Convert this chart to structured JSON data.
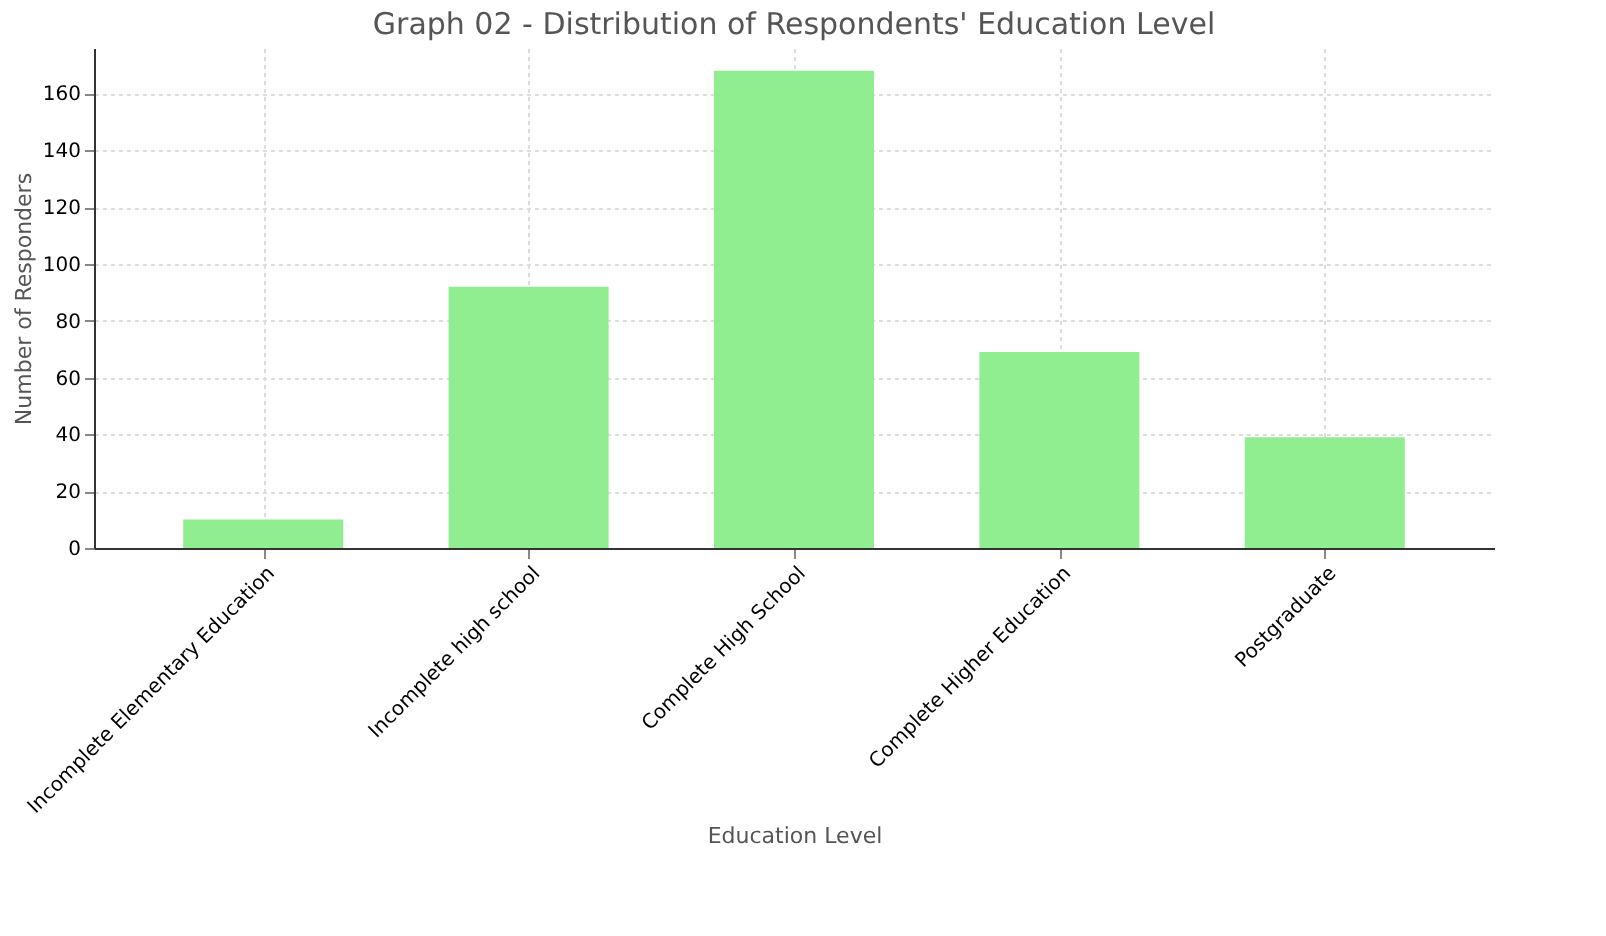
{
  "chart_data": {
    "type": "bar",
    "title": "Graph 02 - Distribution of Respondents' Education Level",
    "xlabel": "Education Level",
    "ylabel": "Number of Responders",
    "categories": [
      "Incomplete Elementary Education",
      "Incomplete high school",
      "Complete High School",
      "Complete Higher Education",
      "Postgraduate"
    ],
    "values": [
      10,
      92,
      168,
      69,
      39
    ],
    "color": "#90ee90",
    "ylim": [
      0,
      176
    ],
    "yticks": [
      0,
      20,
      40,
      60,
      80,
      100,
      120,
      140,
      160
    ],
    "grid": true
  }
}
